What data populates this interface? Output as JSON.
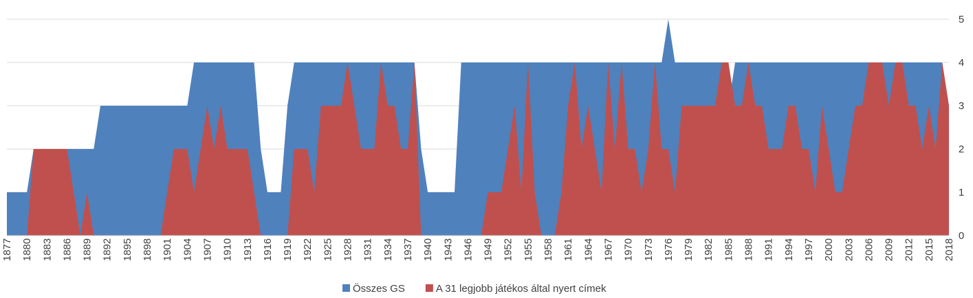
{
  "chart_data": {
    "type": "area",
    "categories": [
      "1877",
      null,
      null,
      "1880",
      null,
      null,
      "1883",
      null,
      null,
      "1886",
      null,
      null,
      "1889",
      null,
      null,
      "1892",
      null,
      null,
      "1895",
      null,
      null,
      "1898",
      null,
      null,
      "1901",
      null,
      null,
      "1904",
      null,
      null,
      "1907",
      null,
      null,
      "1910",
      null,
      null,
      "1913",
      null,
      null,
      "1916",
      null,
      null,
      "1919",
      null,
      null,
      "1922",
      null,
      null,
      "1925",
      null,
      null,
      "1928",
      null,
      null,
      "1931",
      null,
      null,
      "1934",
      null,
      null,
      "1937",
      null,
      null,
      "1940",
      null,
      null,
      "1943",
      null,
      null,
      "1946",
      null,
      null,
      "1949",
      null,
      null,
      "1952",
      null,
      null,
      "1955",
      null,
      null,
      "1958",
      null,
      null,
      "1961",
      null,
      null,
      "1964",
      null,
      null,
      "1967",
      null,
      null,
      "1970",
      null,
      null,
      "1973",
      null,
      null,
      "1976",
      null,
      null,
      "1979",
      null,
      null,
      "1982",
      null,
      null,
      "1985",
      null,
      null,
      "1988",
      null,
      null,
      "1991",
      null,
      null,
      "1994",
      null,
      null,
      "1997",
      null,
      null,
      "2000",
      null,
      null,
      "2003",
      null,
      null,
      "2006",
      null,
      null,
      "2009",
      null,
      null,
      "2012",
      null,
      null,
      "2015",
      null,
      null,
      "2018"
    ],
    "series": [
      {
        "name": "Összes GS",
        "color": "#4f81bd",
        "values": [
          1,
          1,
          1,
          1,
          2,
          2,
          2,
          2,
          2,
          2,
          2,
          2,
          2,
          2,
          3,
          3,
          3,
          3,
          3,
          3,
          3,
          3,
          3,
          3,
          3,
          3,
          3,
          3,
          4,
          4,
          4,
          4,
          4,
          4,
          4,
          4,
          4,
          4,
          2,
          1,
          1,
          1,
          3,
          4,
          4,
          4,
          4,
          4,
          4,
          4,
          4,
          4,
          4,
          4,
          4,
          4,
          4,
          4,
          4,
          4,
          4,
          4,
          2,
          1,
          1,
          1,
          1,
          1,
          4,
          4,
          4,
          4,
          4,
          4,
          4,
          4,
          4,
          4,
          4,
          4,
          4,
          4,
          4,
          4,
          4,
          4,
          4,
          4,
          4,
          4,
          4,
          4,
          4,
          4,
          4,
          4,
          4,
          4,
          4,
          5,
          4,
          4,
          4,
          4,
          4,
          4,
          4,
          4,
          3,
          4,
          4,
          4,
          4,
          4,
          4,
          4,
          4,
          4,
          4,
          4,
          4,
          4,
          4,
          4,
          4,
          4,
          4,
          4,
          4,
          4,
          4,
          4,
          4,
          4,
          4,
          4,
          4,
          4,
          4,
          4,
          4,
          3
        ]
      },
      {
        "name": "A 31 legjobb játékos által nyert címek",
        "color": "#c0504d",
        "values": [
          0,
          0,
          0,
          0,
          2,
          2,
          2,
          2,
          2,
          2,
          1,
          0,
          1,
          0,
          0,
          0,
          0,
          0,
          0,
          0,
          0,
          0,
          0,
          0,
          1,
          2,
          2,
          2,
          1,
          2,
          3,
          2,
          3,
          2,
          2,
          2,
          2,
          1,
          0,
          0,
          0,
          0,
          0,
          2,
          2,
          2,
          1,
          3,
          3,
          3,
          3,
          4,
          3,
          2,
          2,
          2,
          4,
          3,
          3,
          2,
          2,
          4,
          0,
          0,
          0,
          0,
          0,
          0,
          0,
          0,
          0,
          0,
          1,
          1,
          1,
          2,
          3,
          1,
          4,
          1,
          0,
          0,
          0,
          1,
          3,
          4,
          2,
          3,
          2,
          1,
          4,
          2,
          4,
          2,
          2,
          1,
          2,
          4,
          2,
          2,
          1,
          3,
          3,
          3,
          3,
          3,
          3,
          4,
          4,
          3,
          3,
          4,
          3,
          3,
          2,
          2,
          2,
          3,
          3,
          2,
          2,
          1,
          3,
          2,
          1,
          1,
          2,
          3,
          3,
          4,
          4,
          4,
          3,
          4,
          4,
          3,
          3,
          2,
          3,
          2,
          4,
          3
        ]
      }
    ],
    "ylim": [
      0,
      5
    ],
    "yticks": [
      0,
      1,
      2,
      3,
      4,
      5
    ],
    "grid": true,
    "legend": "bottom"
  }
}
